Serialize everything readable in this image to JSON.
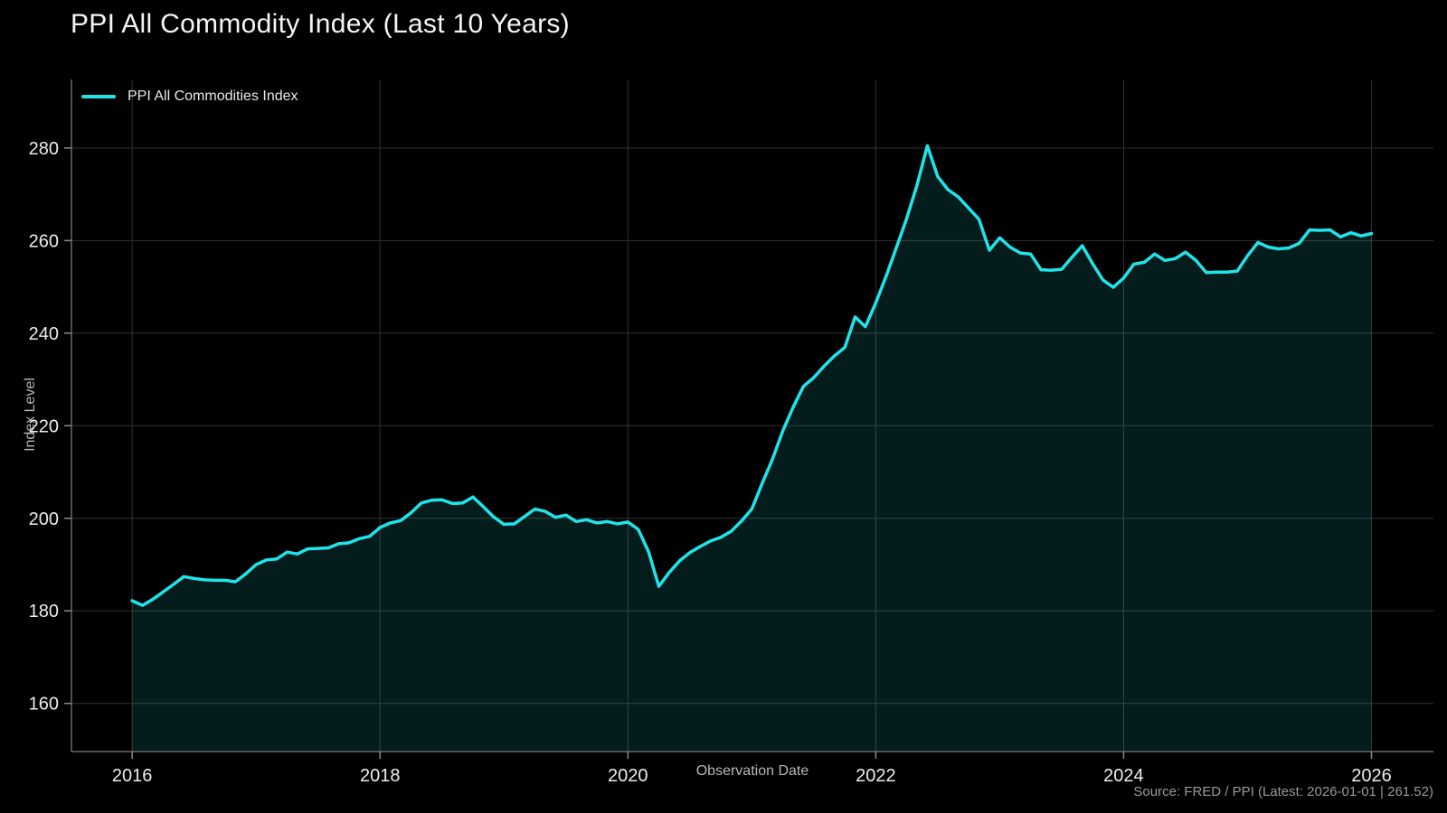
{
  "title": "PPI All Commodity Index (Last 10 Years)",
  "legend": {
    "series_label": "PPI All Commodities Index"
  },
  "axes": {
    "x_label": "Observation Date",
    "y_label": "Index Level"
  },
  "source_note": "Source: FRED / PPI (Latest: 2026-01-01 | 261.52)",
  "colors": {
    "background": "#000000",
    "line": "#1fe4e9",
    "fill": "#1fe4e9",
    "fill_opacity": 0.12,
    "grid": "#333333",
    "spine": "#6b6b6b",
    "tick": "#8a8a8a",
    "tick_label": "#ececec",
    "title": "#f5f5f5",
    "axis_label": "#b8b8b8",
    "source": "#9a9a9a"
  },
  "chart_data": {
    "type": "area",
    "title": "PPI All Commodity Index (Last 10 Years)",
    "series_name": "PPI All Commodities Index",
    "xlabel": "Observation Date",
    "ylabel": "Index Level",
    "frequency": "monthly",
    "start_year": 2016,
    "x_ticks": [
      2016,
      2018,
      2020,
      2022,
      2024,
      2026
    ],
    "y_ticks": [
      160,
      180,
      200,
      220,
      240,
      260,
      280
    ],
    "xlim": [
      2015.51,
      2026.5
    ],
    "ylim": [
      149.6,
      294.8
    ],
    "grid": true,
    "legend_position": "top-left",
    "latest": {
      "date": "2026-01-01",
      "value": 261.52
    },
    "values": [
      182.2,
      181.2,
      182.5,
      184.1,
      185.7,
      187.4,
      187.0,
      186.7,
      186.6,
      186.6,
      186.3,
      188.0,
      190.0,
      191.0,
      191.2,
      192.7,
      192.3,
      193.4,
      193.5,
      193.6,
      194.5,
      194.7,
      195.6,
      196.1,
      198.0,
      199.0,
      199.5,
      201.2,
      203.3,
      203.9,
      204.0,
      203.2,
      203.3,
      204.6,
      202.5,
      200.3,
      198.7,
      198.8,
      200.4,
      202.0,
      201.5,
      200.2,
      200.7,
      199.3,
      199.7,
      199.0,
      199.3,
      198.8,
      199.2,
      197.6,
      192.8,
      185.3,
      188.3,
      190.8,
      192.6,
      193.9,
      195.1,
      195.9,
      197.2,
      199.4,
      202.0,
      207.5,
      212.8,
      218.9,
      224.0,
      228.5,
      230.4,
      232.9,
      235.1,
      236.9,
      243.5,
      241.4,
      246.5,
      252.3,
      258.5,
      264.8,
      272.0,
      280.5,
      273.8,
      271.0,
      269.4,
      267.0,
      264.6,
      257.9,
      260.6,
      258.6,
      257.3,
      257.1,
      253.7,
      253.6,
      253.8,
      256.4,
      258.9,
      255.0,
      251.5,
      249.9,
      251.9,
      254.9,
      255.3,
      257.1,
      255.7,
      256.1,
      257.5,
      255.7,
      253.1,
      253.2,
      253.2,
      253.4,
      256.7,
      259.6,
      258.6,
      258.2,
      258.4,
      259.4,
      262.3,
      262.2,
      262.3,
      260.8,
      261.7,
      261.0,
      261.52
    ]
  }
}
